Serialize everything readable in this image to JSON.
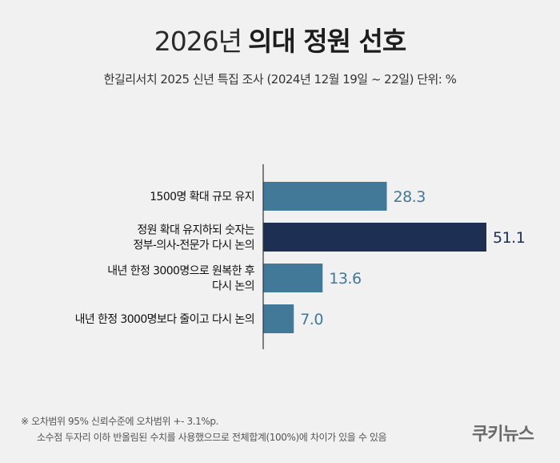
{
  "title": {
    "year": "2026년",
    "main": "의대 정원 선호"
  },
  "subtitle": "한길리서치 2025 신년 특집 조사 (2024년 12월 19일 ~ 22일) 단위: %",
  "chart_data": {
    "type": "bar",
    "orientation": "horizontal",
    "categories": [
      [
        "1500명 확대 규모 유지"
      ],
      [
        "정원 확대 유지하되 숫자는",
        "정부-의사-전문가 다시 논의"
      ],
      [
        "내년 한정 3000명으로 원복한 후",
        "다시 논의"
      ],
      [
        "내년 한정 3000명보다 줄이고 다시 논의"
      ]
    ],
    "values": [
      28.3,
      51.1,
      13.6,
      7.0
    ],
    "value_labels": [
      "28.3",
      "51.1",
      "13.6",
      "7.0"
    ],
    "colors": [
      "#427999",
      "#1d2f52",
      "#427999",
      "#427999"
    ],
    "label_colors": [
      "#427999",
      "#1d2f52",
      "#427999",
      "#427999"
    ],
    "xlim": [
      0,
      51.1
    ],
    "grid": false,
    "legend": "none"
  },
  "footnote": {
    "line1": "※ 오차범위 95% 신뢰수준에 오차범위 +- 3.1%p.",
    "line2": "소수점 두자리 이하 반올림된 수치를 사용했으므로 전체합계(100%)에 차이가 있을 수 있음"
  },
  "logo": "쿠키뉴스"
}
